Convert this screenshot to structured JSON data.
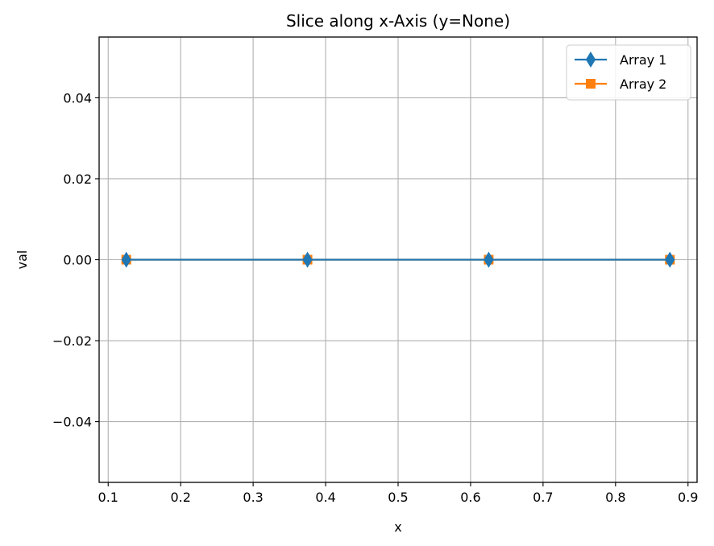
{
  "chart_data": {
    "type": "line",
    "title": "Slice along x-Axis (y=None)",
    "xlabel": "x",
    "ylabel": "val",
    "xlim": [
      0.0875,
      0.9125
    ],
    "ylim": [
      -0.055,
      0.055
    ],
    "x_ticks": [
      0.1,
      0.2,
      0.3,
      0.4,
      0.5,
      0.6,
      0.7,
      0.8,
      0.9
    ],
    "x_tick_labels": [
      "0.1",
      "0.2",
      "0.3",
      "0.4",
      "0.5",
      "0.6",
      "0.7",
      "0.8",
      "0.9"
    ],
    "y_ticks": [
      -0.04,
      -0.02,
      0.0,
      0.02,
      0.04
    ],
    "y_tick_labels": [
      "−0.04",
      "−0.02",
      "0.00",
      "0.02",
      "0.04"
    ],
    "grid": true,
    "legend_position": "top-right",
    "series": [
      {
        "name": "Array 1",
        "color": "#1f77b4",
        "marker": "thin-diamond",
        "x": [
          0.125,
          0.375,
          0.625,
          0.875
        ],
        "y": [
          0.0,
          0.0,
          0.0,
          0.0
        ]
      },
      {
        "name": "Array 2",
        "color": "#ff7f0e",
        "marker": "square",
        "x": [
          0.125,
          0.375,
          0.625,
          0.875
        ],
        "y": [
          0.0,
          0.0,
          0.0,
          0.0
        ]
      }
    ]
  }
}
